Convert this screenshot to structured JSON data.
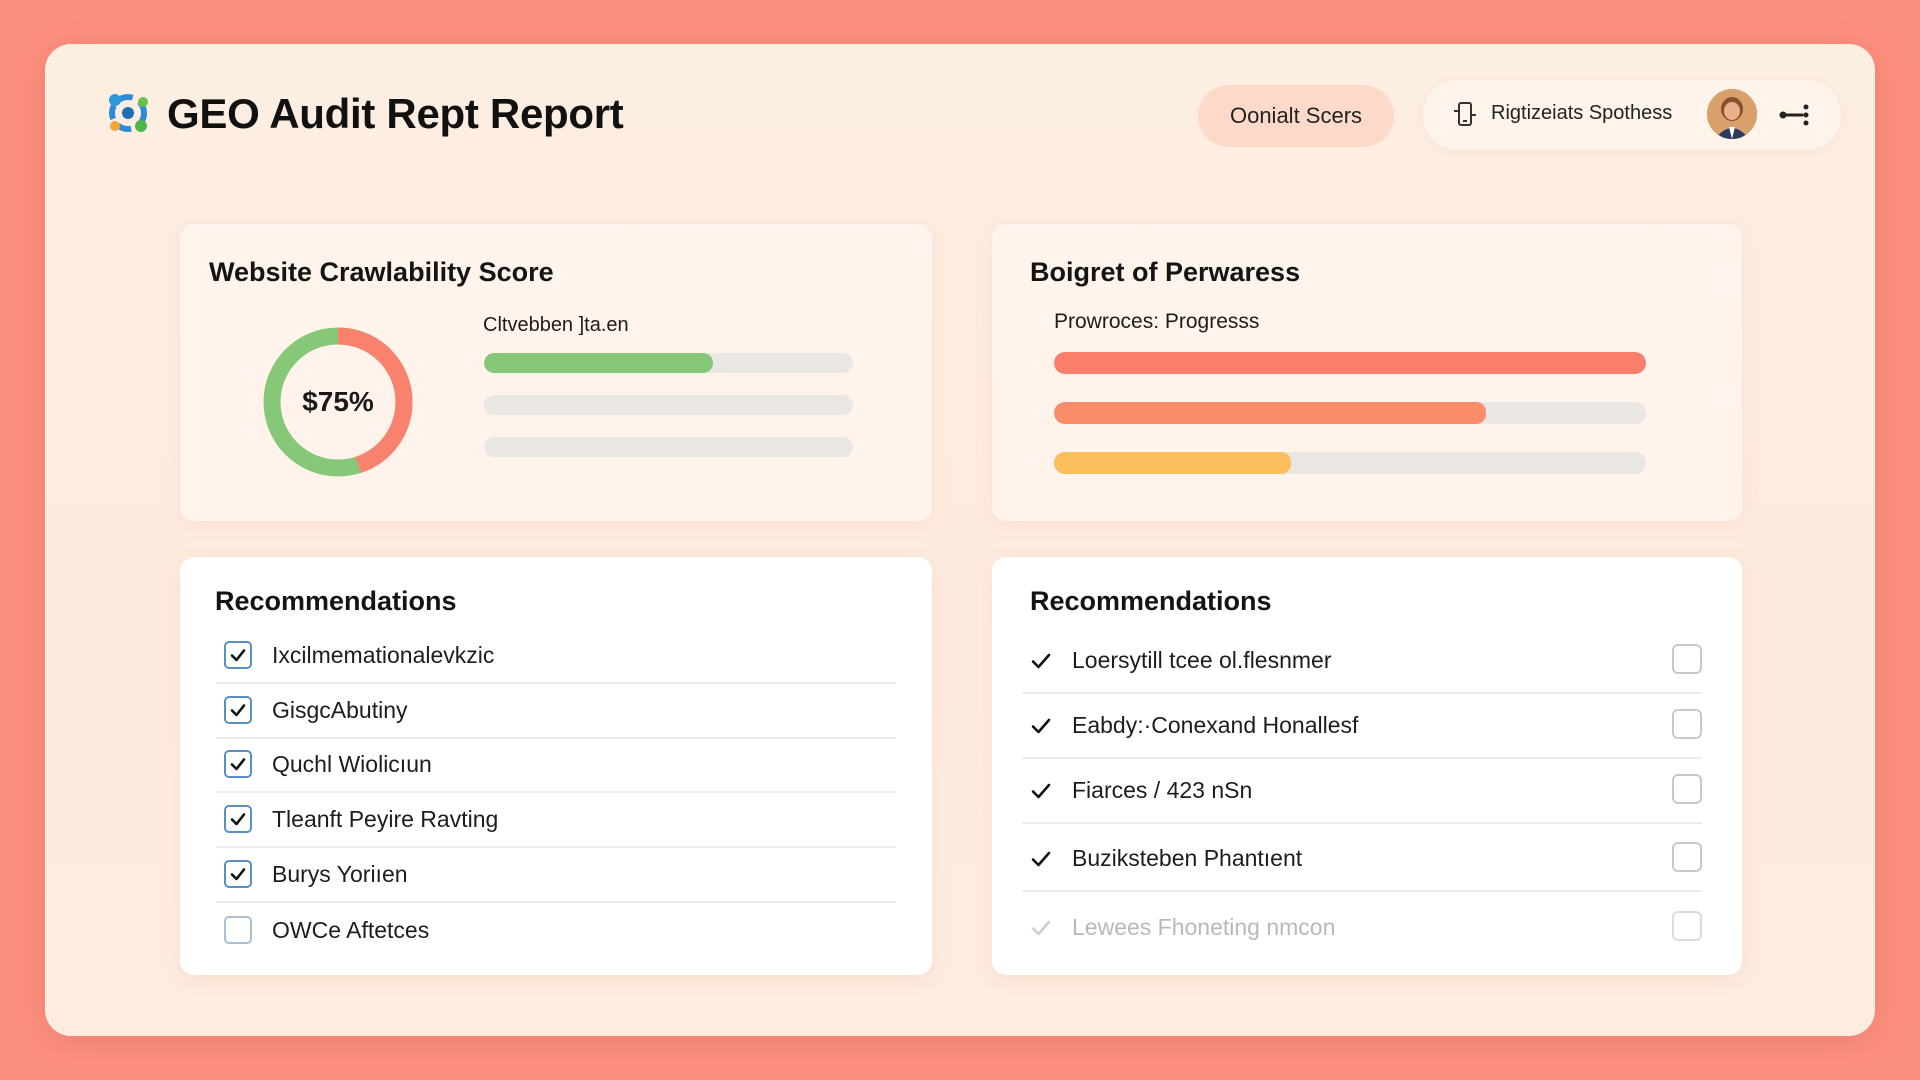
{
  "header": {
    "title": "GEO Audit Rept Report",
    "score_button": "Oonialt Scers",
    "user_name": "Rigtizeiats Spothess"
  },
  "crawl_card": {
    "title": "Website Crawlability Score",
    "score_label": "$75%",
    "score_fraction": 0.75,
    "subtitle": "Cltvebben ]ta.en",
    "bars": [
      {
        "fill": 0.62,
        "color": "#86c878"
      },
      {
        "fill": 0.0,
        "color": "#86c878"
      },
      {
        "fill": 0.0,
        "color": "#86c878"
      }
    ]
  },
  "progress_card": {
    "title": "Boigret of Perwaress",
    "subtitle": "Prowroces: Progresss",
    "bars": [
      {
        "fill": 1.0,
        "color": "#fa7f6b"
      },
      {
        "fill": 0.73,
        "color": "#fb8c6a"
      },
      {
        "fill": 0.4,
        "color": "#fcbd5c"
      }
    ]
  },
  "rec_left": {
    "title": "Recommendations",
    "items": [
      {
        "label": "Ixcilmemationalevkzic",
        "checked": true
      },
      {
        "label": "GisgcAbutiny",
        "checked": true
      },
      {
        "label": "Quchl Wiolicıun",
        "checked": true
      },
      {
        "label": "Tleanft Peyire Ravting",
        "checked": true
      },
      {
        "label": "Burys Yoriıen",
        "checked": true
      },
      {
        "label": "OWCe Aftetces",
        "checked": false
      }
    ]
  },
  "rec_right": {
    "title": "Recommendations",
    "items": [
      {
        "label": "Loersytill tcee ol.flesnmer",
        "faded": false
      },
      {
        "label": "Eabdy:·Conexand Honallesf",
        "faded": false
      },
      {
        "label": "Fiarces / 423 nSn",
        "faded": false
      },
      {
        "label": "Buziksteben Phantıent",
        "faded": false
      },
      {
        "label": "Lewees Fhoneting nmcon",
        "faded": true
      }
    ]
  },
  "colors": {
    "background": "#fb8f7e",
    "donut_green": "#86c878",
    "donut_red": "#f8826d",
    "checkbox_blue": "#5a8fc4"
  },
  "icons": [
    "logo-icon",
    "phone-icon",
    "share-icon",
    "checkmark-icon"
  ]
}
